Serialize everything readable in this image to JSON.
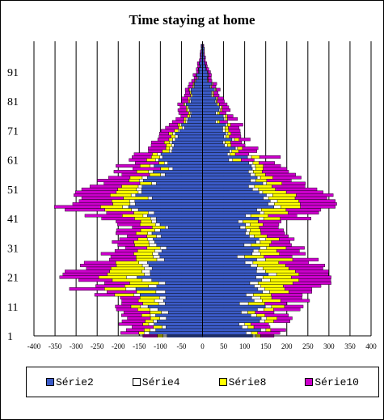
{
  "chart_data": {
    "type": "bar",
    "orientation": "horizontal",
    "stacked": true,
    "mirrored": true,
    "title": "Time staying at home",
    "xlabel": "",
    "ylabel": "",
    "xlim": [
      -400,
      400
    ],
    "ylim": [
      1,
      100
    ],
    "x_ticks": [
      "-400",
      "-350",
      "-300",
      "-250",
      "-200",
      "-150",
      "-100",
      "-50",
      "0",
      "50",
      "100",
      "150",
      "200",
      "250",
      "300",
      "350",
      "400"
    ],
    "y_ticks": [
      "1",
      "11",
      "21",
      "31",
      "41",
      "51",
      "61",
      "71",
      "81",
      "91"
    ],
    "grid": "vertical",
    "legend_position": "bottom",
    "series": [
      {
        "name": "Série2",
        "color": "#3B5BC8",
        "anchors": [
          [
            1,
            105
          ],
          [
            5,
            110
          ],
          [
            10,
            115
          ],
          [
            15,
            120
          ],
          [
            20,
            125
          ],
          [
            25,
            118
          ],
          [
            30,
            112
          ],
          [
            35,
            108
          ],
          [
            40,
            118
          ],
          [
            45,
            138
          ],
          [
            50,
            130
          ],
          [
            55,
            110
          ],
          [
            60,
            90
          ],
          [
            65,
            72
          ],
          [
            70,
            55
          ],
          [
            75,
            40
          ],
          [
            80,
            30
          ],
          [
            85,
            22
          ],
          [
            90,
            12
          ],
          [
            95,
            5
          ],
          [
            100,
            2
          ]
        ]
      },
      {
        "name": "Série4",
        "color": "#FFFFFF",
        "anchors": [
          [
            1,
            10
          ],
          [
            5,
            12
          ],
          [
            10,
            15
          ],
          [
            15,
            18
          ],
          [
            20,
            20
          ],
          [
            25,
            18
          ],
          [
            30,
            15
          ],
          [
            35,
            12
          ],
          [
            40,
            10
          ],
          [
            45,
            14
          ],
          [
            50,
            12
          ],
          [
            55,
            10
          ],
          [
            60,
            8
          ],
          [
            65,
            6
          ],
          [
            70,
            5
          ],
          [
            75,
            4
          ],
          [
            80,
            3
          ],
          [
            85,
            2
          ],
          [
            90,
            1
          ],
          [
            95,
            0
          ],
          [
            100,
            0
          ]
        ]
      },
      {
        "name": "Série8",
        "color": "#FFFF00",
        "anchors": [
          [
            1,
            15
          ],
          [
            5,
            18
          ],
          [
            10,
            25
          ],
          [
            15,
            40
          ],
          [
            20,
            70
          ],
          [
            25,
            65
          ],
          [
            30,
            40
          ],
          [
            35,
            25
          ],
          [
            40,
            30
          ],
          [
            45,
            55
          ],
          [
            50,
            45
          ],
          [
            55,
            25
          ],
          [
            60,
            18
          ],
          [
            65,
            12
          ],
          [
            70,
            8
          ],
          [
            75,
            5
          ],
          [
            80,
            3
          ],
          [
            85,
            2
          ],
          [
            90,
            1
          ],
          [
            95,
            0
          ],
          [
            100,
            0
          ]
        ]
      },
      {
        "name": "Série10",
        "color": "#CC00CC",
        "anchors": [
          [
            1,
            40
          ],
          [
            5,
            45
          ],
          [
            10,
            50
          ],
          [
            15,
            60
          ],
          [
            20,
            85
          ],
          [
            25,
            80
          ],
          [
            30,
            55
          ],
          [
            35,
            45
          ],
          [
            40,
            55
          ],
          [
            45,
            90
          ],
          [
            50,
            80
          ],
          [
            55,
            60
          ],
          [
            60,
            45
          ],
          [
            65,
            35
          ],
          [
            70,
            28
          ],
          [
            75,
            20
          ],
          [
            80,
            15
          ],
          [
            85,
            10
          ],
          [
            90,
            6
          ],
          [
            95,
            3
          ],
          [
            100,
            1
          ]
        ]
      }
    ]
  }
}
